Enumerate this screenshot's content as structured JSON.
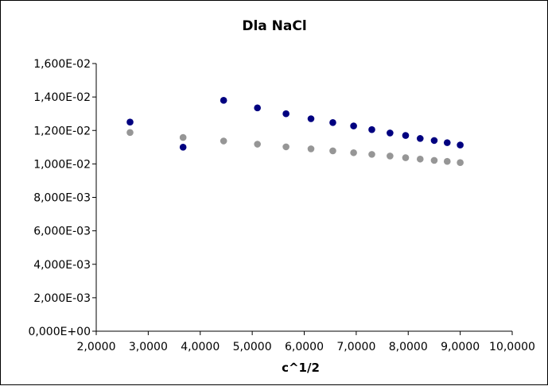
{
  "chart_data": {
    "type": "scatter",
    "title": "Dla NaCl",
    "xlabel": "c^1/2",
    "ylabel": "",
    "xlim": [
      2.0,
      10.0
    ],
    "ylim": [
      0.0,
      0.016
    ],
    "x_ticks": [
      "2,0000",
      "3,0000",
      "4,0000",
      "5,0000",
      "6,0000",
      "7,0000",
      "8,0000",
      "9,0000",
      "10,0000"
    ],
    "y_ticks": [
      "0,000E+00",
      "2,000E-03",
      "4,000E-03",
      "6,000E-03",
      "8,000E-03",
      "1,000E-02",
      "1,200E-02",
      "1,400E-02",
      "1,600E-02"
    ],
    "grid": false,
    "legend": "none",
    "series": [
      {
        "color": "#000080",
        "points": [
          [
            2.65,
            0.0125
          ],
          [
            3.67,
            0.011
          ],
          [
            4.45,
            0.0138
          ],
          [
            5.1,
            0.01335
          ],
          [
            5.65,
            0.013
          ],
          [
            6.13,
            0.0127
          ],
          [
            6.55,
            0.01247
          ],
          [
            6.95,
            0.01227
          ],
          [
            7.3,
            0.01205
          ],
          [
            7.65,
            0.01185
          ],
          [
            7.95,
            0.0117
          ],
          [
            8.23,
            0.01152
          ],
          [
            8.5,
            0.0114
          ],
          [
            8.75,
            0.01127
          ],
          [
            9.0,
            0.01113
          ]
        ]
      },
      {
        "color": "#969696",
        "points": [
          [
            2.65,
            0.01188
          ],
          [
            3.67,
            0.01158
          ],
          [
            4.45,
            0.01137
          ],
          [
            5.1,
            0.01118
          ],
          [
            5.65,
            0.01102
          ],
          [
            6.13,
            0.0109
          ],
          [
            6.55,
            0.01078
          ],
          [
            6.95,
            0.01067
          ],
          [
            7.3,
            0.01057
          ],
          [
            7.65,
            0.01047
          ],
          [
            7.95,
            0.01037
          ],
          [
            8.23,
            0.01029
          ],
          [
            8.5,
            0.01021
          ],
          [
            8.75,
            0.01015
          ],
          [
            9.0,
            0.01008
          ]
        ]
      }
    ]
  }
}
